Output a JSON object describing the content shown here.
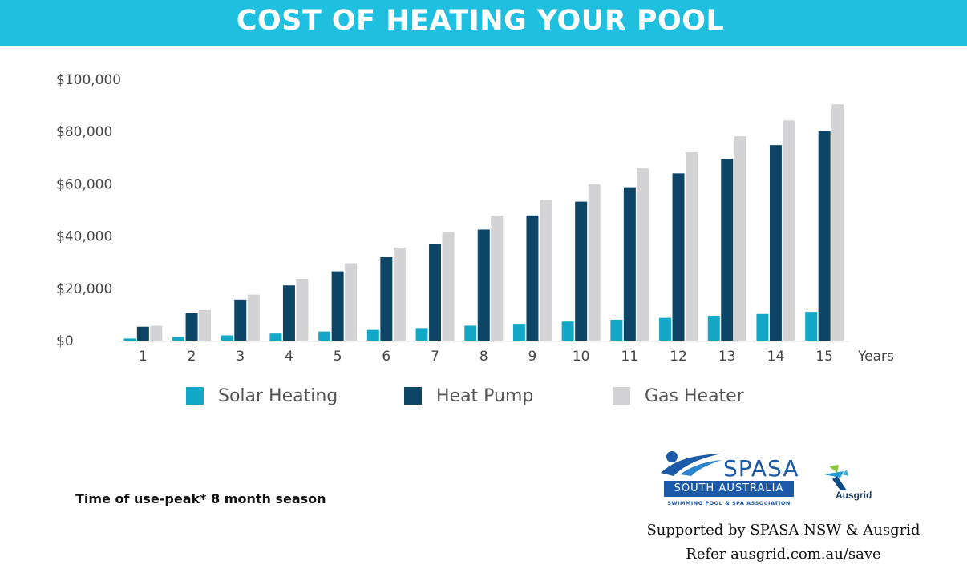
{
  "header": {
    "title": "COST OF HEATING YOUR POOL"
  },
  "chart_data": {
    "type": "bar",
    "categories": [
      "1",
      "2",
      "3",
      "4",
      "5",
      "6",
      "7",
      "8",
      "9",
      "10",
      "11",
      "12",
      "13",
      "14",
      "15"
    ],
    "x_unit_label": "Years",
    "yticks": [
      "$0",
      "$20,000",
      "$40,000",
      "$60,000",
      "$80,000",
      "$100,000"
    ],
    "ylim": [
      0,
      100000
    ],
    "grid": false,
    "legend_position": "bottom",
    "series": [
      {
        "name": "Solar Heating",
        "color": "#13a8c8",
        "values": [
          800,
          1400,
          2000,
          2700,
          3500,
          4100,
          4800,
          5700,
          6400,
          7300,
          8000,
          8700,
          9500,
          10200,
          11000
        ]
      },
      {
        "name": "Heat Pump",
        "color": "#0c4566",
        "values": [
          5300,
          10500,
          15700,
          21100,
          26500,
          31900,
          37100,
          42500,
          47900,
          53200,
          58700,
          64000,
          69500,
          74800,
          80200
        ]
      },
      {
        "name": "Gas Heater",
        "color": "#d3d3d5",
        "values": [
          5700,
          11700,
          17600,
          23600,
          29600,
          35600,
          41600,
          47800,
          53800,
          59800,
          65900,
          72100,
          78200,
          84300,
          90400
        ]
      }
    ]
  },
  "footnote": "Time of use-peak* 8 month season",
  "logos": {
    "spasa_name": "SPASA",
    "spasa_region": "SOUTH AUSTRALIA",
    "spasa_subtitle": "SWIMMING POOL & SPA ASSOCIATION",
    "ausgrid_name": "Ausgrid"
  },
  "credits": {
    "supported_by": "Supported by SPASA NSW & Ausgrid",
    "refer": "Refer ausgrid.com.au/save"
  }
}
